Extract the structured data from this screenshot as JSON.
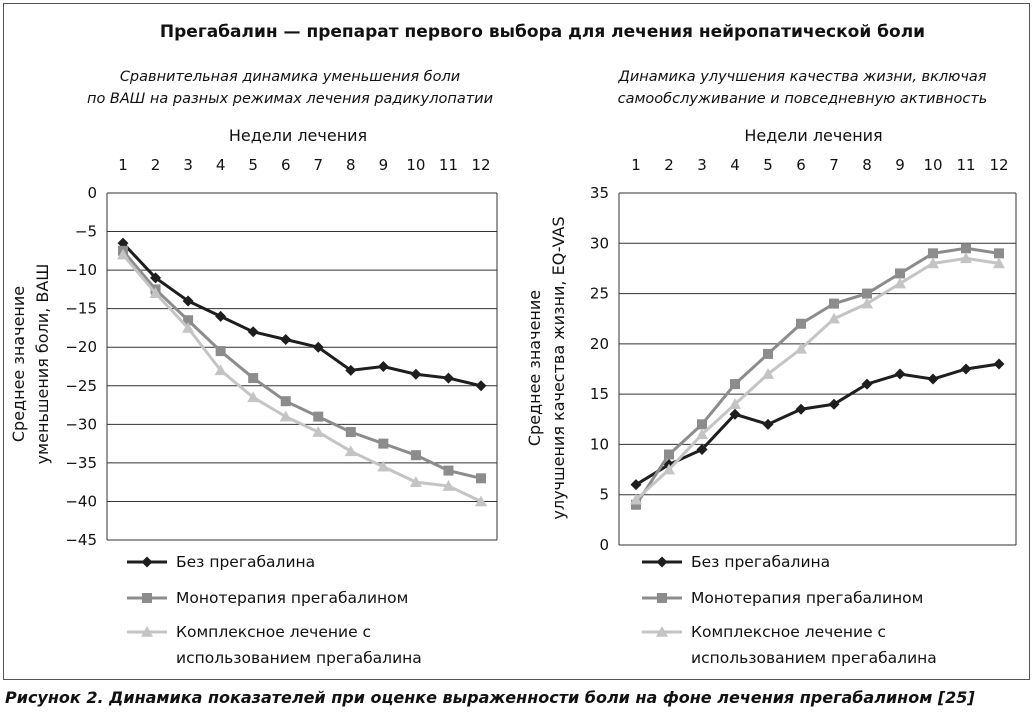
{
  "title": "Прегабалин — препарат первого выбора для лечения нейропатической боли",
  "caption": "Рисунок 2. Динамика показателей при оценке выраженности боли на фоне лечения прегабалином [25]",
  "series_colors": [
    "#1e1e1e",
    "#8c8c8c",
    "#c4c4c4"
  ],
  "legend": [
    {
      "lines": [
        "Без прегабалина"
      ],
      "marker": "diamond"
    },
    {
      "lines": [
        "Монотерапия прегабалином"
      ],
      "marker": "square"
    },
    {
      "lines": [
        "Комплексное лечение с",
        "использованием прегабалина"
      ],
      "marker": "triangle"
    }
  ],
  "chart_data": [
    {
      "type": "line",
      "subtitle": [
        "Сравнительная динамика уменьшения боли",
        "по ВАШ на разных режимах лечения радикулопатии"
      ],
      "xlabel": "Недели лечения",
      "ylabel": [
        "Среднее значение",
        "уменьшения боли, ВАШ"
      ],
      "x": [
        1,
        2,
        3,
        4,
        5,
        6,
        7,
        8,
        9,
        10,
        11,
        12
      ],
      "ylim": [
        -45,
        0
      ],
      "yticks": [
        0,
        -5,
        -10,
        -15,
        -20,
        -25,
        -30,
        -35,
        -40,
        -45
      ],
      "x_axis_position": "top",
      "series": [
        {
          "name": "Без прегабалина",
          "values": [
            -6.5,
            -11,
            -14,
            -16,
            -18,
            -19,
            -20,
            -23,
            -22.5,
            -23.5,
            -24,
            -25
          ]
        },
        {
          "name": "Монотерапия прегабалином",
          "values": [
            -7.5,
            -12.5,
            -16.5,
            -20.5,
            -24,
            -27,
            -29,
            -31,
            -32.5,
            -34,
            -36,
            -37
          ]
        },
        {
          "name": "Комплексное лечение с использованием прегабалина",
          "values": [
            -8,
            -13,
            -17.5,
            -23,
            -26.5,
            -29,
            -31,
            -33.5,
            -35.5,
            -37.5,
            -38,
            -40
          ]
        }
      ]
    },
    {
      "type": "line",
      "subtitle": [
        "Динамика улучшения качества жизни, включая",
        "самообслуживание и повседневную активность"
      ],
      "xlabel": "Недели лечения",
      "ylabel": [
        "Среднее значение",
        "улучшения качества жизни, EQ-VAS"
      ],
      "x": [
        1,
        2,
        3,
        4,
        5,
        6,
        7,
        8,
        9,
        10,
        11,
        12
      ],
      "ylim": [
        0,
        35
      ],
      "yticks": [
        0,
        5,
        10,
        15,
        20,
        25,
        30,
        35
      ],
      "x_axis_position": "top",
      "series": [
        {
          "name": "Без прегабалина",
          "values": [
            6,
            8,
            9.5,
            13,
            12,
            13.5,
            14,
            16,
            17,
            16.5,
            17.5,
            18
          ]
        },
        {
          "name": "Монотерапия прегабалином",
          "values": [
            4,
            9,
            12,
            16,
            19,
            22,
            24,
            25,
            27,
            29,
            29.5,
            29
          ]
        },
        {
          "name": "Комплексное лечение с использованием прегабалина",
          "values": [
            4.5,
            7.5,
            11,
            14,
            17,
            19.5,
            22.5,
            24,
            26,
            28,
            28.5,
            28
          ]
        }
      ]
    }
  ]
}
